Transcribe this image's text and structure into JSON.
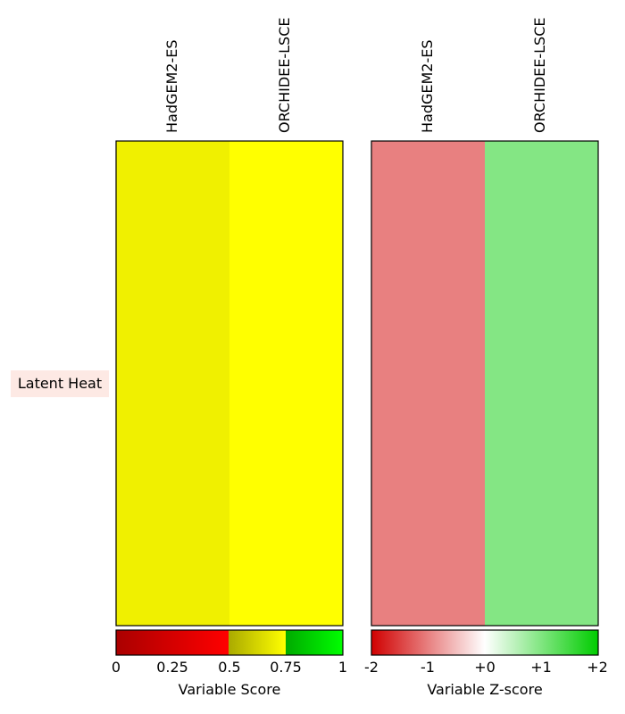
{
  "chart_data": [
    {
      "type": "heatmap",
      "panel": "score",
      "rows": [
        "Latent Heat"
      ],
      "columns": [
        "HadGEM2-ES",
        "ORCHIDEE-LSCE"
      ],
      "cells": [
        [
          "#f0f000",
          "#ffff00"
        ]
      ],
      "values": [
        [
          0.6,
          0.65
        ]
      ],
      "colorbar": {
        "label": "Variable Score",
        "ticks": [
          "0",
          "0.25",
          "0.5",
          "0.75",
          "1"
        ],
        "range": [
          0,
          1
        ]
      }
    },
    {
      "type": "heatmap",
      "panel": "zscore",
      "rows": [
        "Latent Heat"
      ],
      "columns": [
        "HadGEM2-ES",
        "ORCHIDEE-LSCE"
      ],
      "cells": [
        [
          "#e88080",
          "#84e684"
        ]
      ],
      "values": [
        [
          -1,
          1
        ]
      ],
      "colorbar": {
        "label": "Variable Z-score",
        "ticks": [
          "-2",
          "-1",
          "+0",
          "+1",
          "+2"
        ],
        "range": [
          -2,
          2
        ]
      }
    }
  ],
  "colors": {
    "row_label_bg": "#fde9e4",
    "score_gradient": [
      "#aa0000",
      "#ff0000",
      "#aaaa00",
      "#ffff00",
      "#00aa00",
      "#00ff00"
    ],
    "zscore_gradient": [
      "#d00000",
      "#ffffff",
      "#00cc00"
    ]
  }
}
